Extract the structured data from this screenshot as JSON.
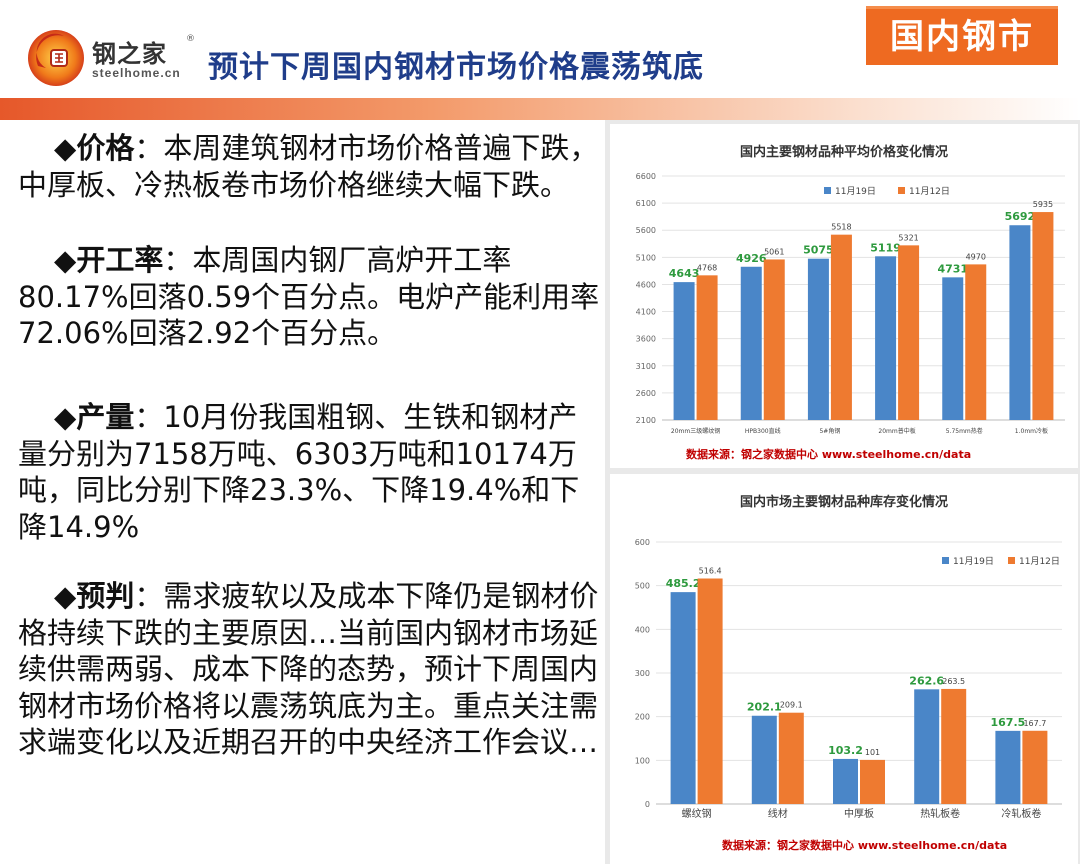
{
  "header": {
    "brand_name": "钢之家",
    "brand_url": "steelhome.cn",
    "title": "预计下周国内钢材市场价格震荡筑底",
    "tag": "国内钢市"
  },
  "paragraphs": [
    {
      "bullet": "◆",
      "lead": "价格",
      "colon": "：",
      "text": "本周建筑钢材市场价格普遍下跌，中厚板、冷热板卷市场价格继续大幅下跌。"
    },
    {
      "bullet": "◆",
      "lead": "开工率",
      "colon": "：",
      "text": "本周国内钢厂高炉开工率80.17%回落0.59个百分点。电炉产能利用率72.06%回落2.92个百分点。"
    },
    {
      "bullet": "◆",
      "lead": "产量",
      "colon": "：",
      "text": "10月份我国粗钢、生铁和钢材产量分别为7158万吨、6303万吨和10174万吨，同比分别下降23.3%、下降19.4%和下降14.9%"
    },
    {
      "bullet": "◆",
      "lead": "预判",
      "colon": "：",
      "text": "需求疲软以及成本下降仍是钢材价格持续下跌的主要原因…当前国内钢材市场延续供需两弱、成本下降的态势，预计下周国内钢材市场价格将以震荡筑底为主。重点关注需求端变化以及近期召开的中央经济工作会议…"
    }
  ],
  "chart_data": [
    {
      "type": "bar",
      "title": "国内主要钢材品种平均价格变化情况",
      "categories": [
        "20mm三级螺纹钢",
        "HPB300直线",
        "5#角钢",
        "20mm普中板",
        "5.75mm热卷",
        "1.0mm冷板"
      ],
      "series": [
        {
          "name": "11月19日",
          "values": [
            4643,
            4926,
            5075,
            5119,
            4731,
            5692
          ]
        },
        {
          "name": "11月12日",
          "values": [
            4768,
            5061,
            5518,
            5321,
            4970,
            5935
          ]
        }
      ],
      "ylim": [
        2100,
        6600
      ],
      "yticks": [
        2100,
        2600,
        3100,
        3600,
        4100,
        4600,
        5100,
        5600,
        6100,
        6600
      ],
      "legend": "top-center",
      "source": "数据来源：钢之家数据中心 www.steelhome.cn/data"
    },
    {
      "type": "bar",
      "title": "国内市场主要钢材品种库存变化情况",
      "categories": [
        "螺纹钢",
        "线材",
        "中厚板",
        "热轧板卷",
        "冷轧板卷"
      ],
      "series": [
        {
          "name": "11月19日",
          "values": [
            485.2,
            202.1,
            103.2,
            262.6,
            167.5
          ]
        },
        {
          "name": "11月12日",
          "values": [
            516.4,
            209.1,
            101,
            263.5,
            167.7
          ]
        }
      ],
      "ylim": [
        0,
        600
      ],
      "yticks": [
        0,
        100,
        200,
        300,
        400,
        500,
        600
      ],
      "legend": "top-right",
      "source": "数据来源：钢之家数据中心 www.steelhome.cn/data"
    }
  ],
  "colors": {
    "blue": "#4a86c8",
    "orange": "#ee7a30",
    "green": "#2e9a3e",
    "title_blue": "#1f3d8a",
    "tag_orange": "#ee6a21",
    "source_red": "#c00000"
  }
}
